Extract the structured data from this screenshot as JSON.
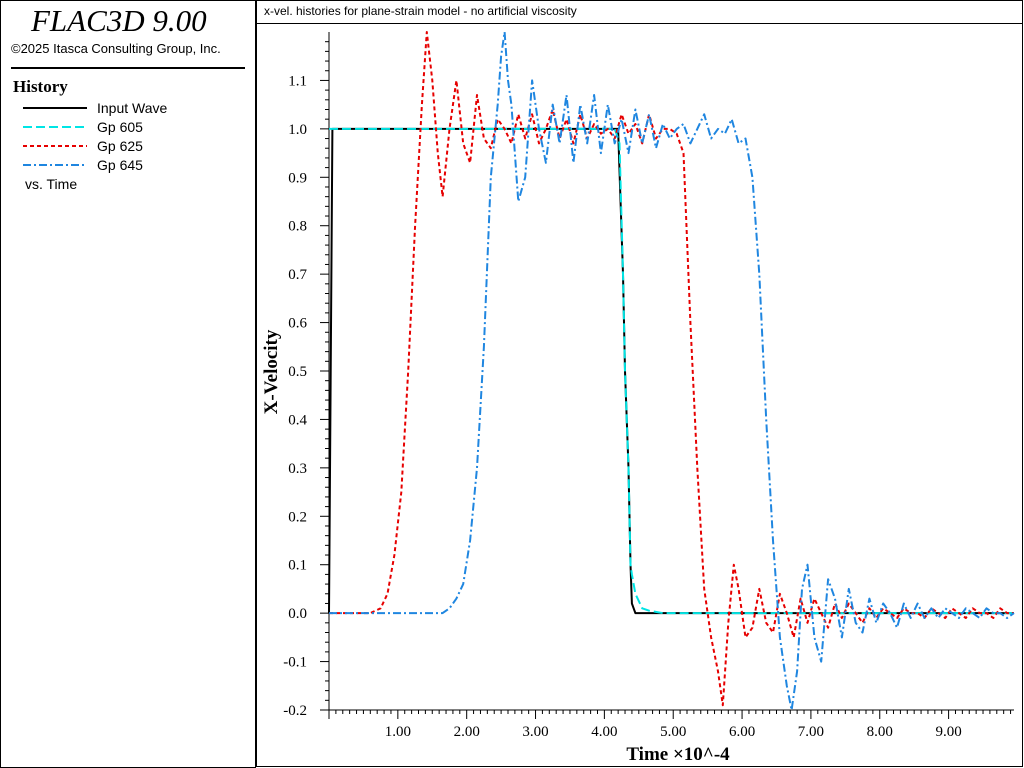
{
  "app": {
    "title": "FLAC3D 9.00",
    "copyright": "©2025 Itasca Consulting Group, Inc."
  },
  "legend": {
    "heading": "History",
    "footer": "vs. Time",
    "items": [
      {
        "label": "Input Wave",
        "color": "#000000",
        "dash": "solid"
      },
      {
        "label": "Gp 605",
        "color": "#00E5E5",
        "dash": "dash"
      },
      {
        "label": "Gp 625",
        "color": "#E60000",
        "dash": "short-dash"
      },
      {
        "label": "Gp 645",
        "color": "#1F86E0",
        "dash": "dash-dot"
      }
    ]
  },
  "chart_data": {
    "type": "line",
    "title": "x-vel. histories for plane-strain model - no artificial viscosity",
    "xlabel": "Time  ×10^-4",
    "ylabel": "X-Velocity",
    "xlim": [
      0,
      9.95
    ],
    "ylim": [
      -0.2,
      1.2
    ],
    "x_ticks": [
      "1.00",
      "2.00",
      "3.00",
      "4.00",
      "5.00",
      "6.00",
      "7.00",
      "8.00",
      "9.00"
    ],
    "y_ticks": [
      "-0.2",
      "-0.1",
      "0.0",
      "0.1",
      "0.2",
      "0.3",
      "0.4",
      "0.5",
      "0.6",
      "0.7",
      "0.8",
      "0.9",
      "1.0",
      "1.1"
    ],
    "grid": false,
    "series": [
      {
        "name": "Input Wave",
        "color": "#000000",
        "x": [
          0,
          0.05,
          4.2,
          4.27,
          4.3,
          4.35,
          4.38,
          4.4,
          4.45,
          9.95
        ],
        "y": [
          0,
          1.0,
          1.0,
          0.7,
          0.5,
          0.3,
          0.1,
          0.02,
          0,
          0
        ]
      },
      {
        "name": "Gp 605",
        "color": "#00E5E5",
        "x": [
          0,
          4.15,
          4.2,
          4.22,
          4.27,
          4.3,
          4.35,
          4.38,
          4.4,
          4.45,
          4.55,
          4.65,
          4.85,
          9.95
        ],
        "y": [
          1.0,
          1.0,
          0.98,
          0.97,
          0.7,
          0.5,
          0.3,
          0.1,
          0.08,
          0.04,
          0.01,
          0.005,
          0,
          0
        ]
      },
      {
        "name": "Gp 625",
        "color": "#E60000",
        "x": [
          0,
          0.6,
          0.75,
          0.85,
          0.95,
          1.05,
          1.15,
          1.25,
          1.35,
          1.42,
          1.5,
          1.58,
          1.65,
          1.75,
          1.85,
          1.95,
          2.05,
          2.15,
          2.25,
          2.35,
          2.45,
          2.55,
          2.65,
          2.75,
          2.85,
          2.95,
          3.05,
          3.15,
          3.25,
          3.35,
          3.45,
          3.55,
          3.65,
          3.75,
          3.85,
          3.95,
          4.05,
          4.15,
          4.25,
          4.35,
          4.45,
          4.55,
          4.65,
          4.75,
          4.85,
          4.95,
          5.05,
          5.15,
          5.25,
          5.35,
          5.45,
          5.55,
          5.65,
          5.72,
          5.8,
          5.88,
          5.95,
          6.05,
          6.15,
          6.25,
          6.35,
          6.45,
          6.55,
          6.65,
          6.75,
          6.85,
          6.95,
          7.05,
          7.15,
          7.25,
          7.35,
          7.45,
          7.55,
          7.65,
          7.75,
          7.85,
          7.95,
          8.05,
          8.15,
          8.25,
          8.35,
          8.45,
          8.55,
          8.65,
          8.75,
          8.85,
          8.95,
          9.05,
          9.15,
          9.25,
          9.35,
          9.45,
          9.55,
          9.65,
          9.75,
          9.85,
          9.95
        ],
        "y": [
          0,
          0,
          0.01,
          0.04,
          0.12,
          0.25,
          0.5,
          0.8,
          1.05,
          1.2,
          1.1,
          0.95,
          0.86,
          1.0,
          1.1,
          0.97,
          0.93,
          1.07,
          0.98,
          0.96,
          1.02,
          1.0,
          0.97,
          1.03,
          0.98,
          1.03,
          0.97,
          1.0,
          1.04,
          0.98,
          1.02,
          0.97,
          1.03,
          0.98,
          1.01,
          0.99,
          1.0,
          0.98,
          1.03,
          0.99,
          1.01,
          0.97,
          1.03,
          0.98,
          1.0,
          1.0,
          0.99,
          0.95,
          0.6,
          0.3,
          0.05,
          -0.05,
          -0.12,
          -0.19,
          -0.02,
          0.1,
          0.05,
          -0.05,
          -0.03,
          0.05,
          -0.02,
          -0.04,
          0.04,
          0.0,
          -0.05,
          0.03,
          -0.02,
          0.03,
          0.0,
          -0.03,
          0.02,
          -0.01,
          0.02,
          0.0,
          -0.02,
          0.01,
          -0.01,
          0.01,
          0.0,
          -0.01,
          0.01,
          0.0,
          0.0,
          -0.01,
          0.01,
          0.0,
          -0.01,
          0.01,
          0.0,
          -0.01,
          0.01,
          0.0,
          0.0,
          -0.01,
          0.01,
          0.0,
          0.0
        ]
      },
      {
        "name": "Gp 645",
        "color": "#1F86E0",
        "x": [
          0,
          1.5,
          1.65,
          1.75,
          1.85,
          1.95,
          2.05,
          2.15,
          2.25,
          2.35,
          2.45,
          2.5,
          2.55,
          2.6,
          2.65,
          2.75,
          2.85,
          2.95,
          3.05,
          3.15,
          3.25,
          3.35,
          3.45,
          3.55,
          3.65,
          3.75,
          3.85,
          3.95,
          4.05,
          4.15,
          4.25,
          4.35,
          4.45,
          4.55,
          4.65,
          4.75,
          4.85,
          4.95,
          5.05,
          5.15,
          5.25,
          5.35,
          5.45,
          5.55,
          5.65,
          5.75,
          5.85,
          5.95,
          6.05,
          6.15,
          6.25,
          6.35,
          6.45,
          6.55,
          6.65,
          6.72,
          6.8,
          6.87,
          6.95,
          7.05,
          7.15,
          7.25,
          7.35,
          7.45,
          7.55,
          7.65,
          7.75,
          7.85,
          7.95,
          8.05,
          8.15,
          8.25,
          8.35,
          8.45,
          8.55,
          8.65,
          8.75,
          8.85,
          8.95,
          9.05,
          9.15,
          9.25,
          9.35,
          9.45,
          9.55,
          9.65,
          9.75,
          9.85,
          9.95
        ],
        "y": [
          0,
          0,
          0.0,
          0.01,
          0.03,
          0.06,
          0.15,
          0.3,
          0.55,
          0.9,
          1.05,
          1.15,
          1.2,
          1.1,
          1.05,
          0.85,
          0.9,
          1.1,
          1.0,
          0.93,
          1.05,
          0.97,
          1.07,
          0.93,
          1.05,
          0.97,
          1.07,
          0.95,
          1.05,
          0.97,
          1.02,
          0.95,
          1.04,
          0.97,
          1.03,
          0.96,
          1.01,
          0.98,
          1.0,
          1.01,
          0.97,
          1.0,
          1.03,
          0.98,
          1.0,
          0.99,
          1.02,
          0.97,
          0.98,
          0.9,
          0.7,
          0.4,
          0.15,
          -0.05,
          -0.15,
          -0.2,
          -0.12,
          0.05,
          0.1,
          -0.05,
          -0.1,
          0.07,
          0.03,
          -0.05,
          0.05,
          -0.02,
          -0.04,
          0.03,
          -0.02,
          0.02,
          0.0,
          -0.03,
          0.02,
          -0.01,
          0.02,
          -0.01,
          0.01,
          -0.01,
          0.01,
          0.0,
          -0.01,
          0.01,
          0.0,
          -0.01,
          0.01,
          0.0,
          0.0,
          -0.01,
          0.0
        ]
      }
    ]
  }
}
